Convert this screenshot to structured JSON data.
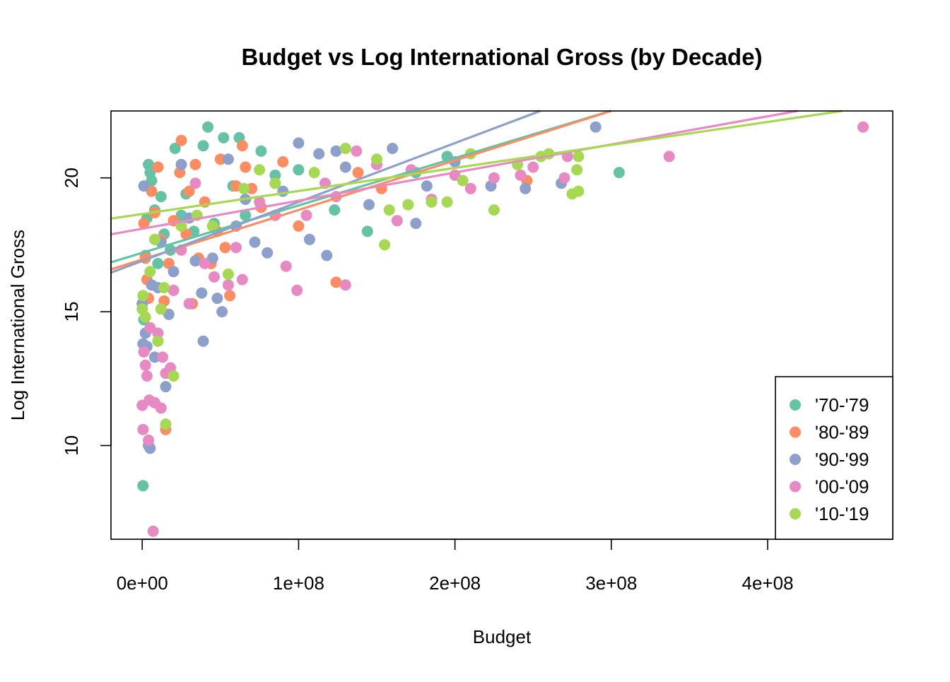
{
  "chart_data": {
    "type": "scatter",
    "title": "Budget vs Log International Gross (by Decade)",
    "xlabel": "Budget",
    "ylabel": "Log International Gross",
    "xlim": [
      -20000000,
      480000000
    ],
    "ylim": [
      6.5,
      22.5
    ],
    "x_ticks": [
      0,
      100000000,
      200000000,
      300000000,
      400000000
    ],
    "x_tick_labels": [
      "0e+00",
      "1e+08",
      "2e+08",
      "3e+08",
      "4e+08"
    ],
    "y_ticks": [
      10,
      15,
      20
    ],
    "y_tick_labels": [
      "10",
      "15",
      "20"
    ],
    "grid": false,
    "legend_position": "bottom-right",
    "series": [
      {
        "name": "'70-'79",
        "color": "#66C2A5",
        "fit": {
          "intercept": 17.2,
          "slope": 1.77e-08
        },
        "points": [
          [
            500000,
            8.5
          ],
          [
            1000000,
            14.7
          ],
          [
            2000000,
            17.1
          ],
          [
            3000000,
            18.5
          ],
          [
            4000000,
            20.5
          ],
          [
            5000000,
            20.2
          ],
          [
            6000000,
            19.9
          ],
          [
            8000000,
            18.8
          ],
          [
            10000000,
            16.8
          ],
          [
            12000000,
            19.3
          ],
          [
            14000000,
            17.9
          ],
          [
            18000000,
            17.3
          ],
          [
            21000000,
            21.1
          ],
          [
            25000000,
            18.6
          ],
          [
            28000000,
            19.4
          ],
          [
            33000000,
            18.0
          ],
          [
            39000000,
            21.2
          ],
          [
            42000000,
            21.9
          ],
          [
            46000000,
            18.3
          ],
          [
            52000000,
            21.5
          ],
          [
            58000000,
            19.7
          ],
          [
            62000000,
            21.5
          ],
          [
            66000000,
            18.6
          ],
          [
            76000000,
            21.0
          ],
          [
            85000000,
            20.1
          ],
          [
            100000000,
            20.3
          ],
          [
            123000000,
            18.8
          ],
          [
            144000000,
            18.0
          ],
          [
            175000000,
            20.2
          ],
          [
            195000000,
            20.8
          ],
          [
            305000000,
            20.2
          ]
        ]
      },
      {
        "name": "'80-'89",
        "color": "#FC8D62",
        "fit": {
          "intercept": 16.95,
          "slope": 1.85e-08
        },
        "points": [
          [
            1000000,
            18.3
          ],
          [
            2000000,
            17.0
          ],
          [
            3000000,
            16.2
          ],
          [
            4000000,
            15.5
          ],
          [
            6000000,
            19.5
          ],
          [
            8000000,
            18.7
          ],
          [
            10000000,
            20.4
          ],
          [
            12000000,
            17.7
          ],
          [
            14000000,
            15.4
          ],
          [
            15000000,
            10.6
          ],
          [
            17000000,
            16.8
          ],
          [
            20000000,
            18.4
          ],
          [
            24000000,
            20.2
          ],
          [
            25000000,
            21.4
          ],
          [
            28000000,
            17.9
          ],
          [
            30000000,
            19.5
          ],
          [
            32000000,
            15.3
          ],
          [
            34000000,
            20.5
          ],
          [
            36000000,
            17.0
          ],
          [
            40000000,
            19.1
          ],
          [
            44000000,
            16.8
          ],
          [
            48000000,
            18.0
          ],
          [
            50000000,
            20.7
          ],
          [
            53000000,
            17.4
          ],
          [
            56000000,
            15.6
          ],
          [
            60000000,
            19.7
          ],
          [
            64000000,
            21.2
          ],
          [
            66000000,
            20.4
          ],
          [
            70000000,
            19.6
          ],
          [
            76000000,
            18.9
          ],
          [
            85000000,
            19.8
          ],
          [
            90000000,
            20.6
          ],
          [
            100000000,
            18.2
          ],
          [
            124000000,
            16.1
          ],
          [
            138000000,
            20.2
          ],
          [
            153000000,
            19.6
          ],
          [
            246000000,
            19.9
          ]
        ]
      },
      {
        "name": "'90-'99",
        "color": "#8DA0CB",
        "fit": {
          "intercept": 16.9,
          "slope": 2.2e-08
        },
        "points": [
          [
            0,
            15.3
          ],
          [
            500000,
            13.8
          ],
          [
            1000000,
            19.7
          ],
          [
            2000000,
            14.2
          ],
          [
            3000000,
            13.7
          ],
          [
            4000000,
            10.0
          ],
          [
            5000000,
            9.9
          ],
          [
            6000000,
            16.0
          ],
          [
            8000000,
            13.3
          ],
          [
            10000000,
            15.9
          ],
          [
            12000000,
            17.6
          ],
          [
            15000000,
            12.2
          ],
          [
            17000000,
            14.9
          ],
          [
            20000000,
            16.5
          ],
          [
            25000000,
            20.5
          ],
          [
            30000000,
            18.5
          ],
          [
            34000000,
            16.9
          ],
          [
            38000000,
            15.7
          ],
          [
            39000000,
            13.9
          ],
          [
            45000000,
            17.0
          ],
          [
            48000000,
            15.5
          ],
          [
            51000000,
            15.0
          ],
          [
            55000000,
            20.7
          ],
          [
            60000000,
            18.2
          ],
          [
            66000000,
            19.2
          ],
          [
            72000000,
            17.6
          ],
          [
            80000000,
            17.2
          ],
          [
            90000000,
            19.5
          ],
          [
            100000000,
            21.3
          ],
          [
            107000000,
            17.7
          ],
          [
            113000000,
            20.9
          ],
          [
            118000000,
            17.1
          ],
          [
            124000000,
            21.0
          ],
          [
            130000000,
            20.4
          ],
          [
            145000000,
            19.0
          ],
          [
            160000000,
            21.1
          ],
          [
            175000000,
            18.3
          ],
          [
            182000000,
            19.7
          ],
          [
            200000000,
            20.6
          ],
          [
            223000000,
            19.7
          ],
          [
            245000000,
            19.6
          ],
          [
            268000000,
            19.8
          ],
          [
            290000000,
            21.9
          ]
        ]
      },
      {
        "name": "'00-'09",
        "color": "#E78AC3",
        "fit": {
          "intercept": 18.1,
          "slope": 1.05e-08
        },
        "points": [
          [
            0,
            11.5
          ],
          [
            500000,
            10.6
          ],
          [
            1000000,
            13.5
          ],
          [
            2000000,
            13.0
          ],
          [
            3000000,
            12.6
          ],
          [
            4000000,
            10.2
          ],
          [
            4500000,
            11.7
          ],
          [
            5000000,
            14.4
          ],
          [
            7000000,
            6.8
          ],
          [
            8000000,
            11.6
          ],
          [
            10000000,
            14.2
          ],
          [
            12000000,
            11.4
          ],
          [
            13000000,
            13.3
          ],
          [
            15000000,
            12.7
          ],
          [
            18000000,
            12.9
          ],
          [
            20000000,
            15.8
          ],
          [
            25000000,
            17.3
          ],
          [
            30000000,
            15.3
          ],
          [
            34000000,
            19.8
          ],
          [
            40000000,
            16.8
          ],
          [
            46000000,
            16.3
          ],
          [
            55000000,
            16.0
          ],
          [
            60000000,
            17.4
          ],
          [
            64000000,
            16.2
          ],
          [
            75000000,
            19.1
          ],
          [
            85000000,
            18.6
          ],
          [
            92000000,
            16.7
          ],
          [
            99000000,
            15.8
          ],
          [
            105000000,
            18.6
          ],
          [
            117000000,
            19.8
          ],
          [
            124000000,
            19.3
          ],
          [
            130000000,
            16.0
          ],
          [
            137000000,
            21.0
          ],
          [
            150000000,
            20.5
          ],
          [
            163000000,
            18.4
          ],
          [
            172000000,
            20.3
          ],
          [
            185000000,
            19.2
          ],
          [
            200000000,
            20.1
          ],
          [
            210000000,
            19.6
          ],
          [
            225000000,
            20.0
          ],
          [
            242000000,
            20.1
          ],
          [
            250000000,
            20.4
          ],
          [
            270000000,
            20.0
          ],
          [
            272000000,
            20.8
          ],
          [
            337000000,
            20.8
          ],
          [
            461000000,
            21.9
          ]
        ]
      },
      {
        "name": "'10-'19",
        "color": "#A6D854",
        "fit": {
          "intercept": 18.65,
          "slope": 8.6e-09
        },
        "points": [
          [
            0,
            15.1
          ],
          [
            500000,
            15.6
          ],
          [
            2000000,
            14.8
          ],
          [
            5000000,
            16.5
          ],
          [
            8000000,
            17.7
          ],
          [
            10000000,
            13.9
          ],
          [
            12000000,
            15.1
          ],
          [
            14000000,
            15.9
          ],
          [
            15000000,
            10.8
          ],
          [
            20000000,
            12.6
          ],
          [
            25000000,
            18.2
          ],
          [
            35000000,
            18.6
          ],
          [
            45000000,
            18.2
          ],
          [
            55000000,
            16.4
          ],
          [
            65000000,
            19.6
          ],
          [
            75000000,
            20.3
          ],
          [
            85000000,
            19.8
          ],
          [
            110000000,
            20.2
          ],
          [
            130000000,
            21.1
          ],
          [
            150000000,
            20.7
          ],
          [
            155000000,
            17.5
          ],
          [
            158000000,
            18.8
          ],
          [
            170000000,
            19.0
          ],
          [
            185000000,
            19.1
          ],
          [
            195000000,
            19.1
          ],
          [
            205000000,
            19.9
          ],
          [
            210000000,
            20.9
          ],
          [
            225000000,
            18.8
          ],
          [
            240000000,
            20.5
          ],
          [
            255000000,
            20.8
          ],
          [
            260000000,
            20.9
          ],
          [
            275000000,
            19.4
          ],
          [
            279000000,
            19.5
          ],
          [
            278000000,
            20.3
          ],
          [
            279000000,
            20.8
          ]
        ]
      }
    ]
  }
}
